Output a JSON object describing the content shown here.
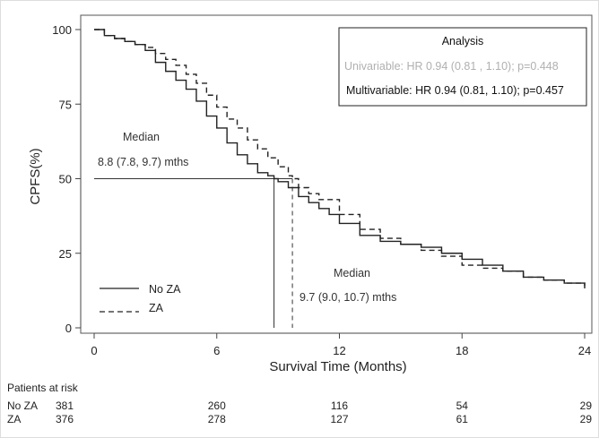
{
  "chart_data": {
    "type": "line",
    "title": "",
    "xlabel": "Survival Time (Months)",
    "ylabel": "CPFS(%)",
    "xlim": [
      0,
      24
    ],
    "ylim": [
      0,
      100
    ],
    "xticks": [
      0,
      6,
      12,
      18,
      24
    ],
    "yticks": [
      0,
      25,
      50,
      75,
      100
    ],
    "grid": false,
    "legend_position": "bottom-left",
    "series": [
      {
        "name": "No ZA",
        "style": "solid",
        "x": [
          0,
          0.5,
          1,
          1.5,
          2,
          2.5,
          3,
          3.5,
          4,
          4.5,
          5,
          5.5,
          6,
          6.5,
          7,
          7.5,
          8,
          8.5,
          8.8,
          9,
          9.5,
          10,
          10.5,
          11,
          11.5,
          12,
          13,
          14,
          15,
          16,
          17,
          18,
          19,
          20,
          21,
          22,
          23,
          24
        ],
        "y": [
          100,
          98,
          97,
          96,
          95,
          93,
          89,
          86,
          83,
          80,
          76,
          71,
          67,
          62,
          58,
          55,
          52,
          51,
          50,
          49,
          47,
          44,
          42,
          40,
          38,
          35,
          31,
          29,
          28,
          27,
          25,
          23,
          21,
          19,
          17,
          16,
          15,
          14
        ]
      },
      {
        "name": "ZA",
        "style": "dashed",
        "x": [
          0,
          0.5,
          1,
          1.5,
          2,
          2.5,
          3,
          3.5,
          4,
          4.5,
          5,
          5.5,
          6,
          6.5,
          7,
          7.5,
          8,
          8.5,
          9,
          9.5,
          9.7,
          10,
          10.5,
          11,
          12,
          13,
          14,
          15,
          16,
          17,
          18,
          19,
          20,
          21,
          22,
          23,
          24
        ],
        "y": [
          100,
          98,
          97,
          96,
          95,
          94,
          92,
          90,
          88,
          85,
          82,
          78,
          74,
          70,
          67,
          63,
          60,
          57,
          54,
          51,
          50,
          47,
          45,
          43,
          38,
          33,
          30,
          28,
          26,
          24,
          21,
          20,
          19,
          17,
          16,
          15,
          13
        ]
      }
    ],
    "annotations": {
      "median_noza": {
        "title": "Median",
        "value": "8.8 (7.8, 9.7) mths",
        "x": 8.8
      },
      "median_za": {
        "title": "Median",
        "value": "9.7 (9.0, 10.7) mths",
        "x": 9.7
      }
    },
    "analysis_box": {
      "title": "Analysis",
      "univariable": "Univariable: HR  0.94   (0.81 , 1.10); p=0.448",
      "multivariable": "Multivariable: HR 0.94 (0.81, 1.10); p=0.457"
    },
    "risk_table": {
      "title": "Patients at risk",
      "times": [
        0,
        6,
        12,
        18,
        24
      ],
      "rows": [
        {
          "label": "No ZA",
          "values": [
            "381",
            "260",
            "116",
            "54",
            "29"
          ]
        },
        {
          "label": "ZA",
          "values": [
            "376",
            "278",
            "127",
            "61",
            "29"
          ]
        }
      ]
    }
  },
  "colors": {
    "line": "#222222",
    "univariable_text": "#b0b0b0",
    "axis": "#444444"
  }
}
